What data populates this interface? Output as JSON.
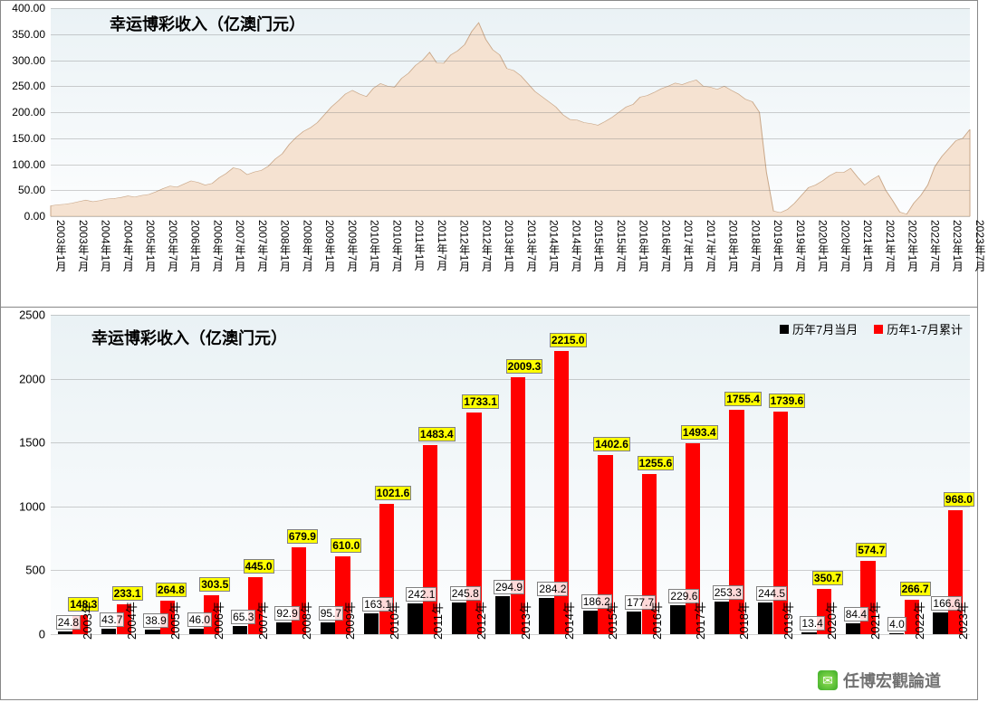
{
  "top_chart": {
    "type": "area",
    "title": "幸运博彩收入（亿澳门元）",
    "title_fontsize": 18,
    "background_gradient": [
      "#eaf2f5",
      "#fcfdfe"
    ],
    "area_fill_color": "#f5e2d1",
    "area_stroke_color": "#c9a788",
    "grid_color": "rgba(120,120,120,0.35)",
    "ylim": [
      0,
      400
    ],
    "ytick_step": 50,
    "ytick_labels": [
      "0.00",
      "50.00",
      "100.00",
      "150.00",
      "200.00",
      "250.00",
      "300.00",
      "350.00",
      "400.00"
    ],
    "x_labels": [
      "2003年1月",
      "2003年7月",
      "2004年1月",
      "2004年7月",
      "2005年1月",
      "2005年7月",
      "2006年1月",
      "2006年7月",
      "2007年1月",
      "2007年7月",
      "2008年1月",
      "2008年7月",
      "2009年1月",
      "2009年7月",
      "2010年1月",
      "2010年7月",
      "2011年1月",
      "2011年7月",
      "2012年1月",
      "2012年7月",
      "2013年1月",
      "2013年7月",
      "2014年1月",
      "2014年7月",
      "2015年1月",
      "2015年7月",
      "2016年1月",
      "2016年7月",
      "2017年1月",
      "2017年7月",
      "2018年1月",
      "2018年7月",
      "2019年1月",
      "2019年7月",
      "2020年1月",
      "2020年7月",
      "2021年1月",
      "2021年7月",
      "2022年1月",
      "2022年7月",
      "2023年1月",
      "2023年7月"
    ],
    "values": [
      20,
      22,
      23,
      25,
      28,
      31,
      28,
      30,
      33,
      34,
      36,
      39,
      37,
      40,
      42,
      47,
      53,
      58,
      56,
      62,
      68,
      65,
      60,
      63,
      74,
      82,
      93,
      90,
      80,
      85,
      88,
      96,
      110,
      120,
      138,
      152,
      163,
      170,
      180,
      195,
      210,
      222,
      235,
      242,
      235,
      230,
      246,
      255,
      250,
      248,
      265,
      275,
      290,
      300,
      315,
      295,
      294,
      310,
      318,
      330,
      355,
      372,
      340,
      320,
      310,
      284,
      280,
      270,
      255,
      240,
      230,
      220,
      210,
      195,
      186,
      185,
      180,
      178,
      175,
      182,
      190,
      200,
      210,
      215,
      229,
      232,
      238,
      245,
      250,
      256,
      253,
      258,
      262,
      250,
      248,
      244,
      250,
      242,
      235,
      225,
      220,
      200,
      85,
      10,
      7,
      13,
      25,
      40,
      55,
      60,
      68,
      78,
      85,
      84,
      92,
      75,
      60,
      70,
      78,
      50,
      30,
      8,
      4,
      25,
      40,
      60,
      95,
      115,
      130,
      145,
      150,
      167
    ]
  },
  "bottom_chart": {
    "type": "grouped-bar",
    "title": "幸运博彩收入（亿澳门元）",
    "title_fontsize": 18,
    "background_gradient": [
      "#eaf2f5",
      "#fcfdfe"
    ],
    "grid_color": "rgba(120,120,120,0.35)",
    "ylim": [
      0,
      2500
    ],
    "ytick_step": 500,
    "ytick_labels": [
      "0",
      "500",
      "1000",
      "1500",
      "2000",
      "2500"
    ],
    "legend": [
      {
        "label": "历年7月当月",
        "color": "#000000"
      },
      {
        "label": "历年1-7月累计",
        "color": "#ff0000"
      }
    ],
    "label_red_bg": "#ffff00",
    "label_border": "#808080",
    "bar_width_ratio": 0.34,
    "categories": [
      "2003年",
      "2004年",
      "2005年",
      "2006年",
      "2007年",
      "2008年",
      "2009年",
      "2010年",
      "2011年",
      "2012年",
      "2013年",
      "2014年",
      "2015年",
      "2016年",
      "2017年",
      "2018年",
      "2019年",
      "2020年",
      "2021年",
      "2022年",
      "2023年"
    ],
    "series_black": [
      24.8,
      43.7,
      38.9,
      46.0,
      65.3,
      92.9,
      95.7,
      163.1,
      242.1,
      245.8,
      294.9,
      284.2,
      186.2,
      177.7,
      229.6,
      253.3,
      244.5,
      13.4,
      84.4,
      4.0,
      166.6
    ],
    "series_red": [
      148.3,
      233.1,
      264.8,
      303.5,
      445.0,
      679.9,
      610.0,
      1021.6,
      1483.4,
      1733.1,
      2009.3,
      2215.0,
      1402.6,
      1255.6,
      1493.4,
      1755.4,
      1739.6,
      350.7,
      574.7,
      266.7,
      968.0
    ]
  },
  "watermark": {
    "icon": "微",
    "text": "任博宏觀論道"
  }
}
